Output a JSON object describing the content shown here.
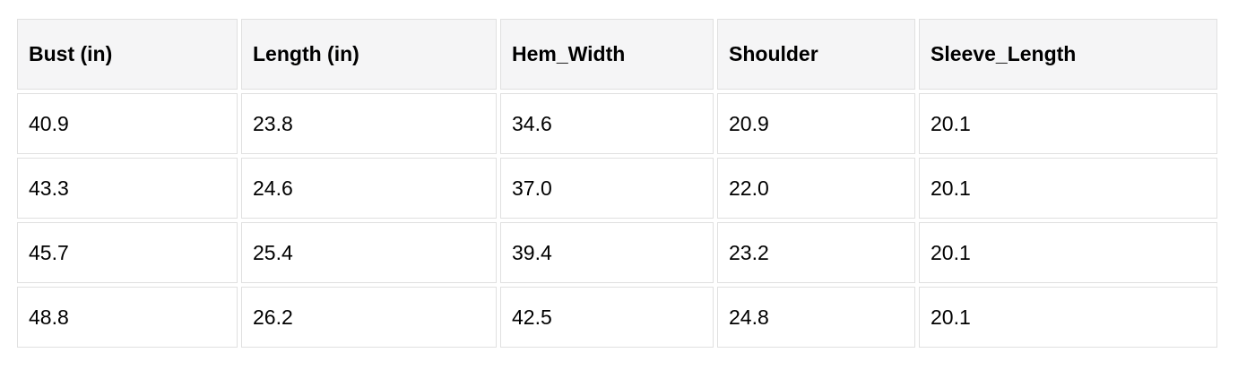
{
  "table": {
    "headers": [
      "Bust (in)",
      "Length (in)",
      "Hem_Width",
      "Shoulder",
      "Sleeve_Length"
    ],
    "rows": [
      [
        "40.9",
        "23.8",
        "34.6",
        "20.9",
        "20.1"
      ],
      [
        "43.3",
        "24.6",
        "37.0",
        "22.0",
        "20.1"
      ],
      [
        "45.7",
        "25.4",
        "39.4",
        "23.2",
        "20.1"
      ],
      [
        "48.8",
        "26.2",
        "42.5",
        "24.8",
        "20.1"
      ]
    ]
  },
  "chart_data": {
    "type": "table",
    "columns": [
      "Bust (in)",
      "Length (in)",
      "Hem_Width",
      "Shoulder",
      "Sleeve_Length"
    ],
    "rows": [
      [
        40.9,
        23.8,
        34.6,
        20.9,
        20.1
      ],
      [
        43.3,
        24.6,
        37.0,
        22.0,
        20.1
      ],
      [
        45.7,
        25.4,
        39.4,
        23.2,
        20.1
      ],
      [
        48.8,
        26.2,
        42.5,
        24.8,
        20.1
      ]
    ],
    "title": "",
    "notes": "Garment size chart table; header row shaded, body rows white, cells separated by light gray borders"
  },
  "colors": {
    "header_bg": "#f5f5f6",
    "cell_bg": "#ffffff",
    "border": "#e0e0e0",
    "text": "#000000",
    "page_bg": "#ffffff"
  }
}
